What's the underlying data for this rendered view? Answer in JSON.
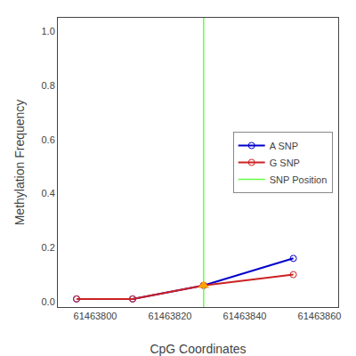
{
  "chart_data": {
    "type": "line",
    "xlabel": "CpG Coordinates",
    "ylabel": "Methylation Frequency",
    "x": [
      61463795,
      61463810,
      61463829,
      61463853
    ],
    "series": [
      {
        "name": "A SNP",
        "color": "#0000CC",
        "marker": "circle-open",
        "values": [
          0.01,
          0.01,
          0.06,
          0.16
        ]
      },
      {
        "name": "G SNP",
        "color": "#CC2222",
        "marker": "circle-open",
        "values": [
          0.01,
          0.01,
          0.06,
          0.1
        ]
      },
      {
        "name": "SNP Position",
        "type": "vline",
        "color": "#66FF44",
        "x": 61463829
      },
      {
        "type": "scatter",
        "marker": "triangle-up",
        "color": "#FFA500",
        "x": [
          61463829
        ],
        "values": [
          0.06
        ]
      }
    ],
    "xlim": [
      61463790,
      61463865
    ],
    "ylim": [
      -0.02,
      1.05
    ],
    "xticks": [
      61463800,
      61463820,
      61463840,
      61463860
    ],
    "yticks": [
      {
        "value": 0.0,
        "label": "0.0"
      },
      0.2,
      0.4,
      0.6,
      0.8,
      {
        "value": 1.0,
        "label": "1.0"
      }
    ],
    "grid": false,
    "legend": "center right"
  }
}
